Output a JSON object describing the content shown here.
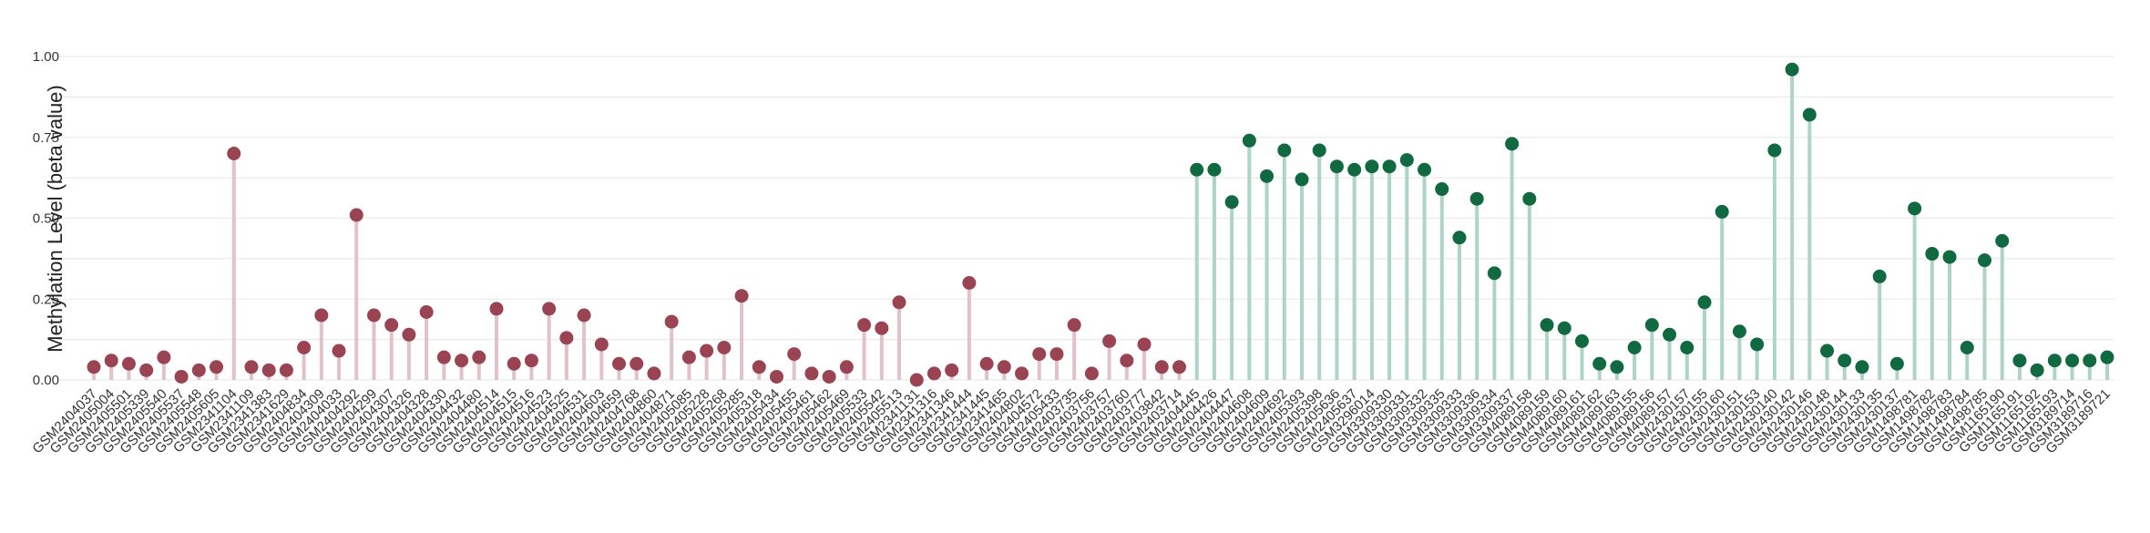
{
  "chart_data": {
    "type": "lollipop",
    "title": "",
    "xlabel": "",
    "ylabel": "Methylation Level (beta value)",
    "ylim": [
      0,
      1
    ],
    "yticks": [
      "0.00",
      "0.25",
      "0.50",
      "0.75",
      "1.00"
    ],
    "grid": true,
    "legend": "none",
    "colors": {
      "group_1_point": "#9a4353",
      "group_1_stem": "#e2c1c9",
      "group_2_point": "#106940",
      "group_2_stem": "#add4c4",
      "grid": "#ebebeb"
    },
    "categories": [
      "GSM2404037",
      "GSM2405004",
      "GSM2405501",
      "GSM2405339",
      "GSM2405540",
      "GSM2405537",
      "GSM2405548",
      "GSM2405605",
      "GSM2341104",
      "GSM2341109",
      "GSM2341383",
      "GSM2341629",
      "GSM2404834",
      "GSM2404309",
      "GSM2404033",
      "GSM2404292",
      "GSM2404299",
      "GSM2404307",
      "GSM2404326",
      "GSM2404328",
      "GSM2404330",
      "GSM2404432",
      "GSM2404480",
      "GSM2404514",
      "GSM2404515",
      "GSM2404516",
      "GSM2404523",
      "GSM2404525",
      "GSM2404531",
      "GSM2404603",
      "GSM2404659",
      "GSM2404768",
      "GSM2404860",
      "GSM2404871",
      "GSM2405085",
      "GSM2405228",
      "GSM2405268",
      "GSM2405285",
      "GSM2405318",
      "GSM2405434",
      "GSM2405455",
      "GSM2405461",
      "GSM2405462",
      "GSM2405469",
      "GSM2405533",
      "GSM2405542",
      "GSM2405513",
      "GSM2341131",
      "GSM2341316",
      "GSM2341346",
      "GSM2341444",
      "GSM2341445",
      "GSM2341465",
      "GSM2404802",
      "GSM2404572",
      "GSM2405433",
      "GSM2403735",
      "GSM2403756",
      "GSM2403757",
      "GSM2403760",
      "GSM2403777",
      "GSM2403842",
      "GSM2403714",
      "GSM2404445",
      "GSM2404426",
      "GSM2404447",
      "GSM2404608",
      "GSM2404609",
      "GSM2404692",
      "GSM2405393",
      "GSM2405398",
      "GSM2405636",
      "GSM2405637",
      "GSM3296014",
      "GSM3309330",
      "GSM3309331",
      "GSM3309332",
      "GSM3309335",
      "GSM3309333",
      "GSM3309336",
      "GSM3309334",
      "GSM3309337",
      "GSM4089158",
      "GSM4089159",
      "GSM4089160",
      "GSM4089161",
      "GSM4089162",
      "GSM4089163",
      "GSM4089155",
      "GSM4089156",
      "GSM4089157",
      "GSM2430157",
      "GSM2430155",
      "GSM2430160",
      "GSM2430151",
      "GSM2430153",
      "GSM2430140",
      "GSM2430142",
      "GSM2430146",
      "GSM2430148",
      "GSM2430144",
      "GSM2430133",
      "GSM2430135",
      "GSM2430137",
      "GSM1498781",
      "GSM1498782",
      "GSM1498783",
      "GSM1498784",
      "GSM1498785",
      "GSM1165190",
      "GSM1165191",
      "GSM1165192",
      "GSM1165193",
      "GSM3189714",
      "GSM3189716",
      "GSM3189721"
    ],
    "series": [
      {
        "values": [
          0.04,
          0.06,
          0.05,
          0.03,
          0.07,
          0.01,
          0.03,
          0.04,
          0.7,
          0.04,
          0.03,
          0.03,
          0.1,
          0.2,
          0.09,
          0.51,
          0.2,
          0.17,
          0.14,
          0.21,
          0.07,
          0.06,
          0.07,
          0.22,
          0.05,
          0.06,
          0.22,
          0.13,
          0.2,
          0.11,
          0.05,
          0.05,
          0.02,
          0.18,
          0.07,
          0.09,
          0.1,
          0.26,
          0.04,
          0.01,
          0.08,
          0.02,
          0.01,
          0.04,
          0.17,
          0.16,
          0.24,
          0.0,
          0.02,
          0.03,
          0.3,
          0.05,
          0.04,
          0.02,
          0.08,
          0.08,
          0.17,
          0.02,
          0.12,
          0.06,
          0.11,
          0.04,
          0.04,
          null,
          null,
          null,
          null,
          null,
          null,
          null,
          null,
          null,
          null,
          null,
          null,
          null,
          null,
          null,
          null,
          null,
          null,
          null,
          null,
          null,
          null,
          null,
          null,
          null,
          null,
          null,
          null,
          null,
          null,
          null,
          null,
          null,
          null,
          null,
          null,
          null,
          null,
          null,
          null,
          null,
          null,
          null,
          null,
          null,
          null,
          null,
          null,
          null,
          null,
          null,
          null,
          null
        ]
      },
      {
        "values": [
          null,
          null,
          null,
          null,
          null,
          null,
          null,
          null,
          null,
          null,
          null,
          null,
          null,
          null,
          null,
          null,
          null,
          null,
          null,
          null,
          null,
          null,
          null,
          null,
          null,
          null,
          null,
          null,
          null,
          null,
          null,
          null,
          null,
          null,
          null,
          null,
          null,
          null,
          null,
          null,
          null,
          null,
          null,
          null,
          null,
          null,
          null,
          null,
          null,
          null,
          null,
          null,
          null,
          null,
          null,
          null,
          null,
          null,
          null,
          null,
          null,
          null,
          null,
          0.65,
          0.65,
          0.55,
          0.74,
          0.63,
          0.71,
          0.62,
          0.71,
          0.66,
          0.65,
          0.66,
          0.66,
          0.68,
          0.65,
          0.59,
          0.44,
          0.56,
          0.33,
          0.73,
          0.56,
          0.17,
          0.16,
          0.12,
          0.05,
          0.04,
          0.1,
          0.17,
          0.14,
          0.1,
          0.24,
          0.52,
          0.15,
          0.11,
          0.71,
          0.96,
          0.82,
          0.09,
          0.06,
          0.04,
          0.32,
          0.05,
          0.53,
          0.39,
          0.38,
          0.1,
          0.37,
          0.43,
          0.06,
          0.03,
          0.06,
          0.06,
          0.06,
          0.07
        ]
      }
    ]
  }
}
